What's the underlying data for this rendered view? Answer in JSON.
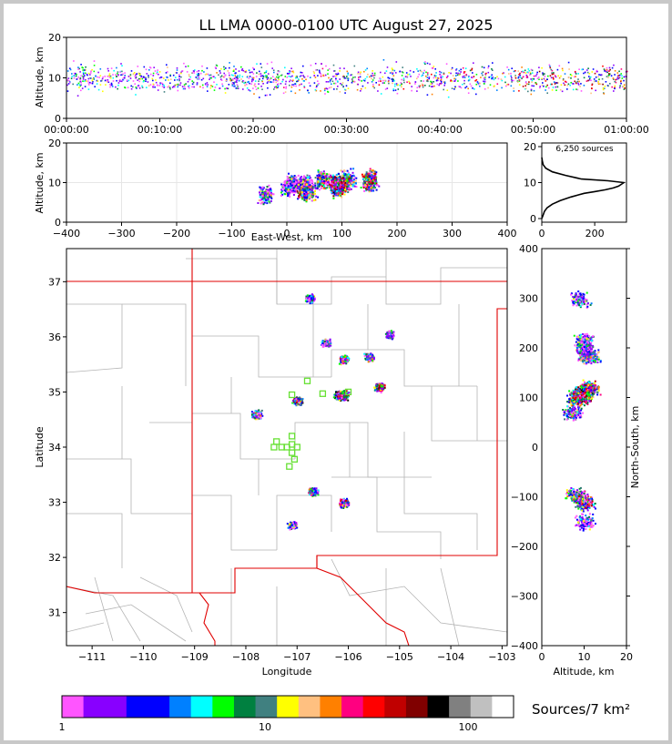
{
  "chart_data": {
    "type": "scatter",
    "title": "LL LMA 0000-0100 UTC August 27, 2025",
    "source_count_label": "6,250 sources",
    "colorbar": {
      "label": "Sources/7 km²",
      "ticks": [
        "1",
        "10",
        "100"
      ],
      "colors": [
        "#ff55ff",
        "#8800ff",
        "#8800ff",
        "#0000ff",
        "#0000ff",
        "#0080ff",
        "#00ffff",
        "#00ff00",
        "#008040",
        "#408080",
        "#ffff00",
        "#ffc080",
        "#ff8000",
        "#ff0080",
        "#ff0000",
        "#c00000",
        "#800000",
        "#000000",
        "#808080",
        "#c0c0c0",
        "#ffffff"
      ]
    },
    "panels": {
      "alt_time": {
        "ylabel": "Altitude, km",
        "ylim": [
          0,
          20
        ],
        "yticks": [
          "0",
          "10",
          "20"
        ],
        "xticks": [
          "00:00:00",
          "00:10:00",
          "00:20:00",
          "00:30:00",
          "00:40:00",
          "00:50:00",
          "01:00:00"
        ]
      },
      "alt_ew": {
        "ylabel": "Altitude, km",
        "xlabel": "East-West, km",
        "xlim": [
          -400,
          400
        ],
        "ylim": [
          0,
          20
        ],
        "xticks": [
          "−400",
          "−300",
          "−200",
          "−100",
          "0",
          "100",
          "200",
          "300",
          "400"
        ],
        "yticks": [
          "0",
          "10",
          "20"
        ]
      },
      "hist": {
        "xticks": [
          "0",
          "200"
        ],
        "yticks": [
          "0",
          "10",
          "20"
        ],
        "profile": [
          [
            0,
            0
          ],
          [
            5,
            1
          ],
          [
            10,
            2
          ],
          [
            20,
            3
          ],
          [
            40,
            4
          ],
          [
            70,
            5
          ],
          [
            110,
            6
          ],
          [
            160,
            7
          ],
          [
            200,
            7.5
          ],
          [
            240,
            8
          ],
          [
            270,
            8.5
          ],
          [
            290,
            9
          ],
          [
            300,
            9.5
          ],
          [
            310,
            10
          ],
          [
            250,
            10.5
          ],
          [
            150,
            11
          ],
          [
            90,
            12
          ],
          [
            40,
            13
          ],
          [
            15,
            14
          ],
          [
            5,
            15
          ],
          [
            2,
            16
          ],
          [
            0,
            17
          ]
        ]
      },
      "map": {
        "xlabel": "Longitude",
        "ylabel": "Latitude",
        "xlim": [
          -111.5,
          -102.9
        ],
        "ylim": [
          30.4,
          37.6
        ],
        "xticks": [
          "−111",
          "−110",
          "−109",
          "−108",
          "−107",
          "−106",
          "−105",
          "−104",
          "−103"
        ],
        "yticks": [
          "31",
          "32",
          "33",
          "34",
          "35",
          "36",
          "37"
        ],
        "stations": [
          [
            -106.8,
            35.2
          ],
          [
            -106.5,
            34.97
          ],
          [
            -106.0,
            35.0
          ],
          [
            -107.1,
            34.95
          ],
          [
            -107.4,
            34.1
          ],
          [
            -107.45,
            34.0
          ],
          [
            -107.3,
            34.0
          ],
          [
            -107.2,
            34.0
          ],
          [
            -107.0,
            34.0
          ],
          [
            -107.1,
            34.2
          ],
          [
            -107.1,
            34.05
          ],
          [
            -107.1,
            33.9
          ],
          [
            -107.05,
            33.78
          ],
          [
            -107.15,
            33.65
          ]
        ]
      },
      "ns_alt": {
        "xlabel": "Altitude, km",
        "ylabel": "North-South, km",
        "xlim": [
          0,
          20
        ],
        "ylim": [
          -400,
          400
        ],
        "xticks": [
          "0",
          "10",
          "20"
        ],
        "yticks": [
          "−400",
          "−300",
          "−200",
          "−100",
          "0",
          "100",
          "200",
          "300",
          "400"
        ]
      }
    },
    "clusters": [
      {
        "lon": -106.75,
        "lat": 36.7,
        "ew": 0,
        "ns": 300,
        "alt": 9,
        "intensity": 0.3
      },
      {
        "lon": -106.45,
        "lat": 35.9,
        "ew": 30,
        "ns": 215,
        "alt": 10,
        "intensity": 0.4
      },
      {
        "lon": -106.1,
        "lat": 35.6,
        "ew": 65,
        "ns": 185,
        "alt": 11,
        "intensity": 0.7
      },
      {
        "lon": -105.6,
        "lat": 35.65,
        "ew": 110,
        "ns": 185,
        "alt": 11,
        "intensity": 0.5
      },
      {
        "lon": -105.2,
        "lat": 36.05,
        "ew": 150,
        "ns": 200,
        "alt": 10,
        "intensity": 0.3
      },
      {
        "lon": -105.4,
        "lat": 35.1,
        "ew": 150,
        "ns": 120,
        "alt": 11,
        "intensity": 0.9
      },
      {
        "lon": -106.2,
        "lat": 34.95,
        "ew": 90,
        "ns": 110,
        "alt": 9,
        "intensity": 1.0
      },
      {
        "lon": -107.0,
        "lat": 34.85,
        "ew": 30,
        "ns": 100,
        "alt": 8,
        "intensity": 0.9
      },
      {
        "lon": -107.8,
        "lat": 34.6,
        "ew": -40,
        "ns": 70,
        "alt": 7,
        "intensity": 0.5
      },
      {
        "lon": -106.7,
        "lat": 33.2,
        "ew": 40,
        "ns": -95,
        "alt": 8,
        "intensity": 0.6
      },
      {
        "lon": -106.1,
        "lat": 33.0,
        "ew": 90,
        "ns": -110,
        "alt": 10,
        "intensity": 0.8
      },
      {
        "lon": -107.1,
        "lat": 32.6,
        "ew": 10,
        "ns": -150,
        "alt": 10,
        "intensity": 0.3
      },
      {
        "lon": -106.1,
        "lat": 34.95,
        "ew": 100,
        "ns": 105,
        "alt": 10,
        "intensity": 1.0
      }
    ]
  }
}
